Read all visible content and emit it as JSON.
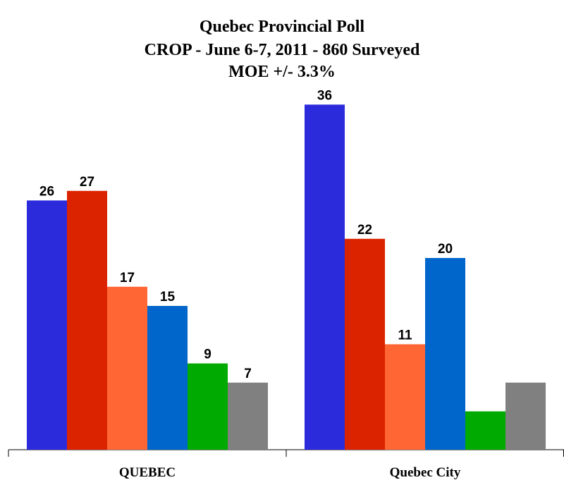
{
  "chart_data": {
    "type": "bar",
    "title": "Quebec Provincial Poll",
    "subtitle": "CROP - June 6-7, 2011 - 860 Surveyed",
    "annotation": "MOE +/- 3.3%",
    "categories": [
      "QUEBEC",
      "Quebec City"
    ],
    "series": [
      {
        "color": "#2b2bdb",
        "values": [
          26,
          36
        ]
      },
      {
        "color": "#dc2300",
        "values": [
          27,
          22
        ]
      },
      {
        "color": "#ff6633",
        "values": [
          17,
          11
        ]
      },
      {
        "color": "#0066cc",
        "values": [
          15,
          20
        ]
      },
      {
        "color": "#00aa00",
        "values": [
          9,
          4
        ],
        "value_labels": [
          "9",
          null
        ]
      },
      {
        "color": "#808080",
        "values": [
          7,
          7
        ],
        "value_labels": [
          "7",
          null
        ]
      }
    ],
    "ylim": [
      0,
      40
    ]
  }
}
